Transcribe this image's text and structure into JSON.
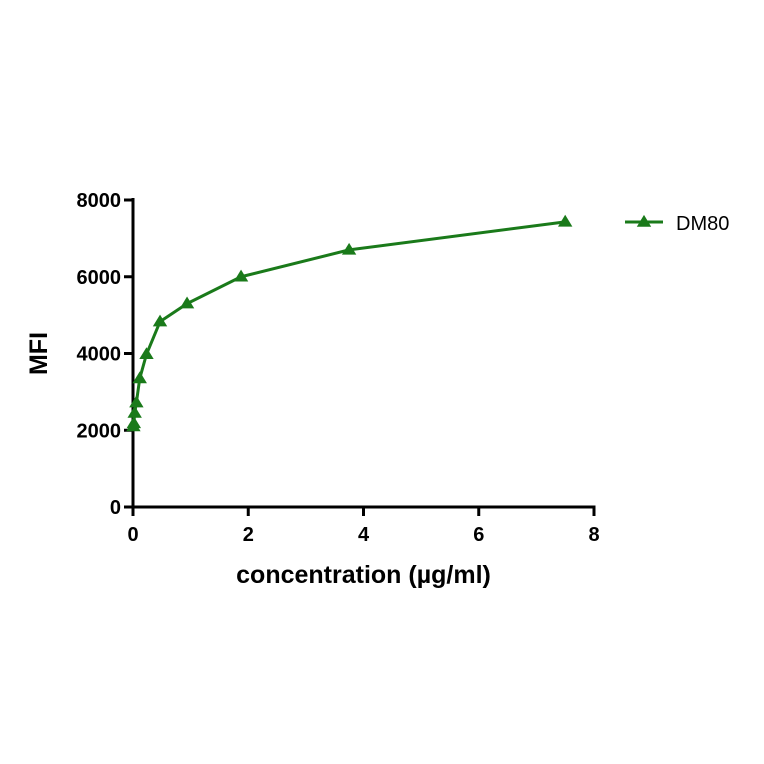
{
  "chart_data": {
    "type": "line",
    "title": "",
    "xlabel": "concentration (µg/ml)",
    "ylabel": "MFI",
    "xlim": [
      0,
      8
    ],
    "ylim": [
      0,
      8000
    ],
    "x_ticks": [
      0,
      2,
      4,
      6,
      8
    ],
    "y_ticks": [
      0,
      2000,
      4000,
      6000,
      8000
    ],
    "grid": false,
    "legend_position": "top-right",
    "series": [
      {
        "name": "DM80",
        "color": "#1a7a1a",
        "marker": "triangle",
        "x": [
          0.0073,
          0.0146,
          0.0293,
          0.0586,
          0.117,
          0.234,
          0.469,
          0.938,
          1.875,
          3.75,
          7.5
        ],
        "y": [
          2100,
          2180,
          2450,
          2720,
          3350,
          3980,
          4830,
          5300,
          6000,
          6700,
          7430
        ]
      }
    ]
  }
}
